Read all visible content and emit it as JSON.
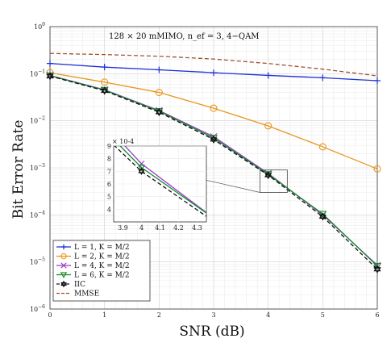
{
  "chart_data": {
    "type": "line",
    "title": "",
    "annotation": "128 × 20 mMIMO, n_ef = 3, 4−QAM",
    "xlabel": "SNR (dB)",
    "ylabel": "Bit  Error Rate",
    "xlim": [
      0,
      6
    ],
    "ylim": [
      1e-06,
      1
    ],
    "yscale": "log",
    "grid": true,
    "legend_position": "bottom-left",
    "x": [
      0,
      1,
      2,
      3,
      4,
      5,
      6
    ],
    "x_ticks": [
      "0",
      "1",
      "2",
      "3",
      "4",
      "5",
      "6"
    ],
    "y_tick_exponents": [
      0,
      -1,
      -2,
      -3,
      -4,
      -5,
      -6
    ],
    "series": [
      {
        "name": "L = 1, K = M/2",
        "color": "#1f2fd6",
        "marker": "plus",
        "dash": "solid",
        "values": [
          0.165,
          0.138,
          0.121,
          0.105,
          0.092,
          0.082,
          0.071
        ]
      },
      {
        "name": "L = 2, K = M/2",
        "color": "#e8961e",
        "marker": "circle",
        "dash": "solid",
        "values": [
          0.105,
          0.066,
          0.04,
          0.0185,
          0.0078,
          0.0028,
          0.00095
        ]
      },
      {
        "name": "L = 4, K = M/2",
        "color": "#9b3bc8",
        "marker": "x",
        "dash": "solid",
        "values": [
          0.092,
          0.0455,
          0.0165,
          0.0046,
          0.00076,
          0.0001,
          8.5e-06
        ]
      },
      {
        "name": "L = 6, K = M/2",
        "color": "#138a2a",
        "marker": "triangle-down",
        "dash": "solid",
        "values": [
          0.091,
          0.0448,
          0.016,
          0.0043,
          0.00073,
          0.000105,
          8.2e-06
        ]
      },
      {
        "name": "IIC",
        "color": "#111111",
        "marker": "hexagram",
        "dash": "dashed",
        "values": [
          0.089,
          0.0435,
          0.0152,
          0.004,
          0.0007,
          9.2e-05,
          7e-06
        ]
      },
      {
        "name": "MMSE",
        "color": "#a0522d",
        "marker": "none",
        "dash": "dashed",
        "values": [
          0.27,
          0.255,
          0.235,
          0.205,
          0.165,
          0.125,
          0.09
        ]
      }
    ],
    "inset": {
      "xlim": [
        3.85,
        4.35
      ],
      "ylim": [
        3,
        9
      ],
      "x_ticks": [
        "3.9",
        "4",
        "4.1",
        "4.2",
        "4.3"
      ],
      "x_tick_values": [
        3.9,
        4.0,
        4.1,
        4.2,
        4.3
      ],
      "y_ticks": [
        "4",
        "5",
        "6",
        "7",
        "8",
        "9"
      ],
      "y_tick_values": [
        4,
        5,
        6,
        7,
        8,
        9
      ],
      "y_multiplier": "× 10^-4"
    }
  }
}
